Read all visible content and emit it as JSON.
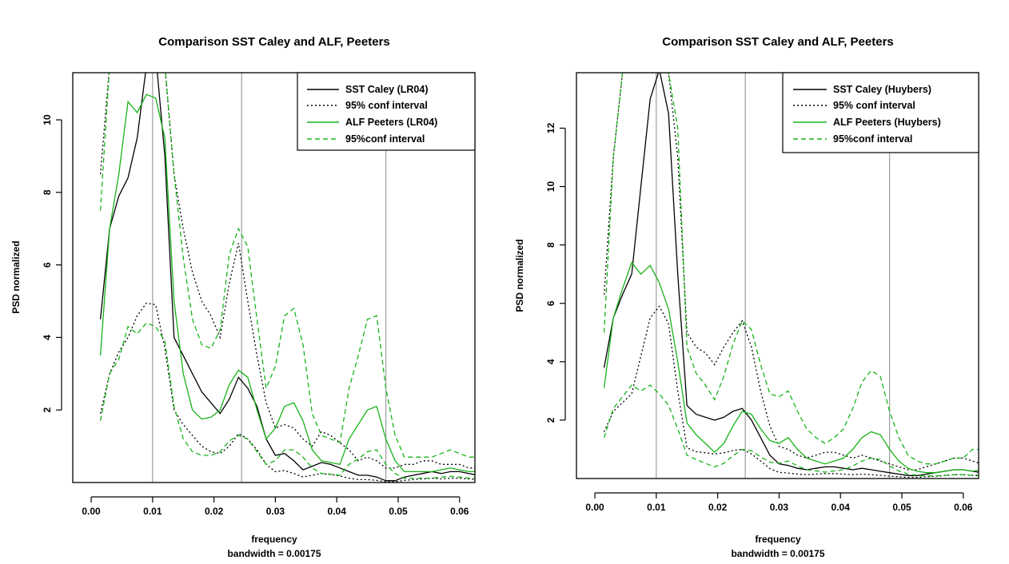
{
  "colors": {
    "black": "#000000",
    "green": "#17b317",
    "grid": "#9e9e9e"
  },
  "chart_data": [
    {
      "type": "line",
      "title": "Comparison SST Caley and ALF, Peeters",
      "xlabel": "frequency",
      "subxlabel": "bandwidth = 0.00175",
      "ylabel": "PSD normalized",
      "xlim": [
        -0.003,
        0.0625
      ],
      "ylim": [
        0,
        11.3
      ],
      "xticks": [
        "0.00",
        "0.01",
        "0.02",
        "0.03",
        "0.04",
        "0.05",
        "0.06"
      ],
      "xtick_values": [
        0,
        0.01,
        0.02,
        0.03,
        0.04,
        0.05,
        0.06
      ],
      "yticks": [
        "2",
        "4",
        "6",
        "8",
        "10"
      ],
      "ytick_values": [
        2,
        4,
        6,
        8,
        10
      ],
      "vlines": [
        0.01,
        0.0245,
        0.048
      ],
      "legend_position": "top-right",
      "x": [
        0.0015,
        0.003,
        0.0045,
        0.006,
        0.0075,
        0.009,
        0.0105,
        0.012,
        0.0135,
        0.015,
        0.0165,
        0.018,
        0.0195,
        0.021,
        0.0225,
        0.024,
        0.0255,
        0.027,
        0.0285,
        0.03,
        0.0315,
        0.033,
        0.0345,
        0.036,
        0.0375,
        0.039,
        0.0405,
        0.042,
        0.0435,
        0.045,
        0.0465,
        0.048,
        0.0495,
        0.051,
        0.0525,
        0.054,
        0.0555,
        0.057,
        0.0585,
        0.06,
        0.0615,
        0.063
      ],
      "series": [
        {
          "name": "SST Caley (LR04)",
          "color": "#000000",
          "dash": "solid",
          "values": [
            4.5,
            7.0,
            7.9,
            8.4,
            9.5,
            11.5,
            11.8,
            9.0,
            4.0,
            3.5,
            3.0,
            2.5,
            2.2,
            1.9,
            2.3,
            2.9,
            2.6,
            2.1,
            1.2,
            0.75,
            0.8,
            0.6,
            0.35,
            0.45,
            0.55,
            0.5,
            0.4,
            0.3,
            0.2,
            0.2,
            0.15,
            0.05,
            0.05,
            0.15,
            0.2,
            0.25,
            0.3,
            0.25,
            0.3,
            0.3,
            0.25,
            0.2
          ]
        },
        {
          "name": "95% conf interval",
          "color": "#000000",
          "dash": "dot",
          "values": [
            8.5,
            11.5,
            11.5,
            11.5,
            11.5,
            11.5,
            11.5,
            11.5,
            8.5,
            7.0,
            5.8,
            5.0,
            4.6,
            4.0,
            5.5,
            6.6,
            5.0,
            3.5,
            2.2,
            1.5,
            1.6,
            1.5,
            1.2,
            1.0,
            1.4,
            1.3,
            1.1,
            0.9,
            0.6,
            0.7,
            0.6,
            0.4,
            0.4,
            0.5,
            0.5,
            0.6,
            0.6,
            0.5,
            0.5,
            0.5,
            0.4,
            0.4
          ]
        },
        {
          "name": "",
          "color": "#000000",
          "dash": "dot",
          "values": [
            1.9,
            3.0,
            3.6,
            4.0,
            4.6,
            4.95,
            4.9,
            3.7,
            2.0,
            1.6,
            1.3,
            1.0,
            0.85,
            0.8,
            1.0,
            1.35,
            1.2,
            0.9,
            0.5,
            0.3,
            0.33,
            0.25,
            0.15,
            0.2,
            0.25,
            0.22,
            0.18,
            0.12,
            0.08,
            0.08,
            0.06,
            0.02,
            0.02,
            0.06,
            0.08,
            0.1,
            0.12,
            0.1,
            0.12,
            0.12,
            0.1,
            0.08
          ]
        },
        {
          "name": "ALF Peeters (LR04)",
          "color": "#17b317",
          "dash": "solid",
          "values": [
            3.5,
            7.0,
            8.5,
            10.5,
            10.2,
            10.7,
            10.6,
            9.5,
            5.0,
            3.0,
            2.0,
            1.75,
            1.8,
            2.0,
            2.7,
            3.1,
            2.9,
            2.0,
            1.2,
            1.5,
            2.1,
            2.2,
            1.7,
            0.9,
            0.6,
            0.55,
            0.5,
            1.2,
            1.6,
            2.0,
            2.1,
            1.2,
            0.6,
            0.3,
            0.3,
            0.3,
            0.3,
            0.35,
            0.4,
            0.35,
            0.3,
            0.3
          ]
        },
        {
          "name": "95%conf interval",
          "color": "#17b317",
          "dash": "dash",
          "values": [
            7.5,
            11.5,
            11.5,
            11.5,
            11.5,
            11.5,
            11.5,
            11.5,
            8.5,
            6.2,
            4.5,
            3.8,
            3.7,
            4.2,
            6.3,
            7.0,
            6.5,
            4.5,
            2.6,
            3.2,
            4.6,
            4.8,
            3.8,
            1.9,
            1.3,
            1.2,
            1.1,
            2.6,
            3.5,
            4.5,
            4.6,
            2.6,
            1.3,
            0.7,
            0.7,
            0.7,
            0.7,
            0.8,
            0.9,
            0.8,
            0.7,
            0.7
          ]
        },
        {
          "name": "",
          "color": "#17b317",
          "dash": "dash",
          "values": [
            1.7,
            3.0,
            3.4,
            4.3,
            4.1,
            4.4,
            4.3,
            3.9,
            2.1,
            1.2,
            0.85,
            0.75,
            0.75,
            0.85,
            1.15,
            1.3,
            1.2,
            0.85,
            0.5,
            0.6,
            0.9,
            0.9,
            0.7,
            0.4,
            0.25,
            0.23,
            0.2,
            0.5,
            0.65,
            0.85,
            0.9,
            0.5,
            0.25,
            0.12,
            0.12,
            0.12,
            0.12,
            0.15,
            0.17,
            0.15,
            0.12,
            0.12
          ]
        }
      ]
    },
    {
      "type": "line",
      "title": "Comparison SST Caley and ALF, Peeters",
      "xlabel": "frequency",
      "subxlabel": "bandwidth = 0.00175",
      "ylabel": "PSD normalized",
      "xlim": [
        -0.003,
        0.0625
      ],
      "ylim": [
        0,
        13.9
      ],
      "xticks": [
        "0.00",
        "0.01",
        "0.02",
        "0.03",
        "0.04",
        "0.05",
        "0.06"
      ],
      "xtick_values": [
        0,
        0.01,
        0.02,
        0.03,
        0.04,
        0.05,
        0.06
      ],
      "yticks": [
        "2",
        "4",
        "6",
        "8",
        "10",
        "12"
      ],
      "ytick_values": [
        2,
        4,
        6,
        8,
        10,
        12
      ],
      "vlines": [
        0.01,
        0.0245,
        0.048
      ],
      "legend_position": "top-right",
      "x": [
        0.0015,
        0.003,
        0.0045,
        0.006,
        0.0075,
        0.009,
        0.0105,
        0.012,
        0.0135,
        0.015,
        0.0165,
        0.018,
        0.0195,
        0.021,
        0.0225,
        0.024,
        0.0255,
        0.027,
        0.0285,
        0.03,
        0.0315,
        0.033,
        0.0345,
        0.036,
        0.0375,
        0.039,
        0.0405,
        0.042,
        0.0435,
        0.045,
        0.0465,
        0.048,
        0.0495,
        0.051,
        0.0525,
        0.054,
        0.0555,
        0.057,
        0.0585,
        0.06,
        0.0615,
        0.063
      ],
      "series": [
        {
          "name": "SST Caley (Huybers)",
          "color": "#000000",
          "dash": "solid",
          "values": [
            3.8,
            5.5,
            6.3,
            7.0,
            10.0,
            13.0,
            14.0,
            12.5,
            7.0,
            2.5,
            2.2,
            2.1,
            2.0,
            2.1,
            2.3,
            2.4,
            2.0,
            1.4,
            0.8,
            0.5,
            0.45,
            0.35,
            0.3,
            0.35,
            0.4,
            0.4,
            0.35,
            0.3,
            0.35,
            0.3,
            0.25,
            0.2,
            0.15,
            0.1,
            0.1,
            0.15,
            0.2,
            0.25,
            0.3,
            0.3,
            0.25,
            0.2
          ]
        },
        {
          "name": "95% conf interval",
          "color": "#000000",
          "dash": "dot",
          "values": [
            6.3,
            11.0,
            13.9,
            13.9,
            13.9,
            13.9,
            13.9,
            13.9,
            11.0,
            5.0,
            4.5,
            4.3,
            3.9,
            4.5,
            5.0,
            5.4,
            4.5,
            3.0,
            1.8,
            1.1,
            1.0,
            0.8,
            0.7,
            0.8,
            0.9,
            0.9,
            0.8,
            0.7,
            0.8,
            0.7,
            0.6,
            0.5,
            0.4,
            0.3,
            0.3,
            0.4,
            0.5,
            0.6,
            0.7,
            0.7,
            0.6,
            0.5
          ]
        },
        {
          "name": "",
          "color": "#000000",
          "dash": "dot",
          "values": [
            1.6,
            2.3,
            2.6,
            2.9,
            4.2,
            5.5,
            5.9,
            5.3,
            3.0,
            1.05,
            0.92,
            0.88,
            0.84,
            0.88,
            0.96,
            1.0,
            0.84,
            0.6,
            0.34,
            0.21,
            0.19,
            0.15,
            0.13,
            0.15,
            0.17,
            0.17,
            0.15,
            0.13,
            0.15,
            0.13,
            0.11,
            0.08,
            0.06,
            0.04,
            0.04,
            0.06,
            0.08,
            0.1,
            0.13,
            0.13,
            0.11,
            0.08
          ]
        },
        {
          "name": "ALF Peeters (Huybers)",
          "color": "#17b317",
          "dash": "solid",
          "values": [
            3.1,
            5.5,
            6.5,
            7.4,
            7.0,
            7.3,
            6.7,
            5.8,
            4.0,
            1.9,
            1.5,
            1.2,
            0.9,
            1.2,
            1.8,
            2.3,
            2.2,
            1.7,
            1.3,
            1.2,
            1.4,
            1.0,
            0.7,
            0.6,
            0.5,
            0.6,
            0.7,
            1.0,
            1.4,
            1.6,
            1.5,
            1.0,
            0.6,
            0.35,
            0.25,
            0.2,
            0.2,
            0.25,
            0.3,
            0.3,
            0.25,
            0.3
          ]
        },
        {
          "name": "95%conf interval",
          "color": "#17b317",
          "dash": "dash",
          "values": [
            5.0,
            11.0,
            13.9,
            13.9,
            13.9,
            13.9,
            13.9,
            13.9,
            12.0,
            4.5,
            3.6,
            3.2,
            2.7,
            3.5,
            4.6,
            5.4,
            5.1,
            3.9,
            2.9,
            2.8,
            3.0,
            2.3,
            1.7,
            1.4,
            1.2,
            1.4,
            1.7,
            2.4,
            3.3,
            3.7,
            3.5,
            2.3,
            1.4,
            0.8,
            0.6,
            0.5,
            0.5,
            0.6,
            0.7,
            0.7,
            1.0,
            1.0
          ]
        },
        {
          "name": "",
          "color": "#17b317",
          "dash": "dash",
          "values": [
            1.4,
            2.4,
            2.8,
            3.2,
            3.0,
            3.2,
            2.9,
            2.5,
            1.7,
            0.8,
            0.65,
            0.52,
            0.4,
            0.52,
            0.78,
            1.0,
            0.95,
            0.74,
            0.56,
            0.52,
            0.6,
            0.43,
            0.3,
            0.26,
            0.22,
            0.26,
            0.3,
            0.43,
            0.6,
            0.7,
            0.65,
            0.43,
            0.26,
            0.15,
            0.11,
            0.09,
            0.09,
            0.11,
            0.13,
            0.13,
            0.11,
            0.13
          ]
        }
      ]
    }
  ]
}
